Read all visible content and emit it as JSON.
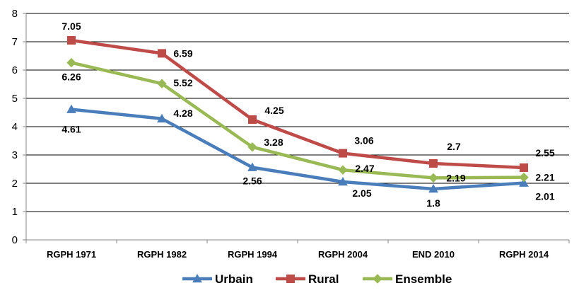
{
  "chart_data": {
    "type": "line",
    "title": "",
    "xlabel": "",
    "ylabel": "",
    "ylim": [
      0,
      8
    ],
    "yticks": [
      0,
      1,
      2,
      3,
      4,
      5,
      6,
      7,
      8
    ],
    "grid": true,
    "legend_position": "bottom",
    "categories": [
      "RGPH 1971",
      "RGPH 1982",
      "RGPH 1994",
      "RGPH 2004",
      "END 2010",
      "RGPH 2014"
    ],
    "series": [
      {
        "name": "Urbain",
        "color": "#4a7ebb",
        "marker": "triangle",
        "values": [
          4.61,
          4.28,
          2.56,
          2.05,
          1.8,
          2.01
        ]
      },
      {
        "name": "Rural",
        "color": "#be4b48",
        "marker": "square",
        "values": [
          7.05,
          6.59,
          4.25,
          3.06,
          2.7,
          2.55
        ]
      },
      {
        "name": "Ensemble",
        "color": "#98b954",
        "marker": "diamond",
        "values": [
          6.26,
          5.52,
          3.28,
          2.47,
          2.19,
          2.21
        ]
      }
    ]
  }
}
